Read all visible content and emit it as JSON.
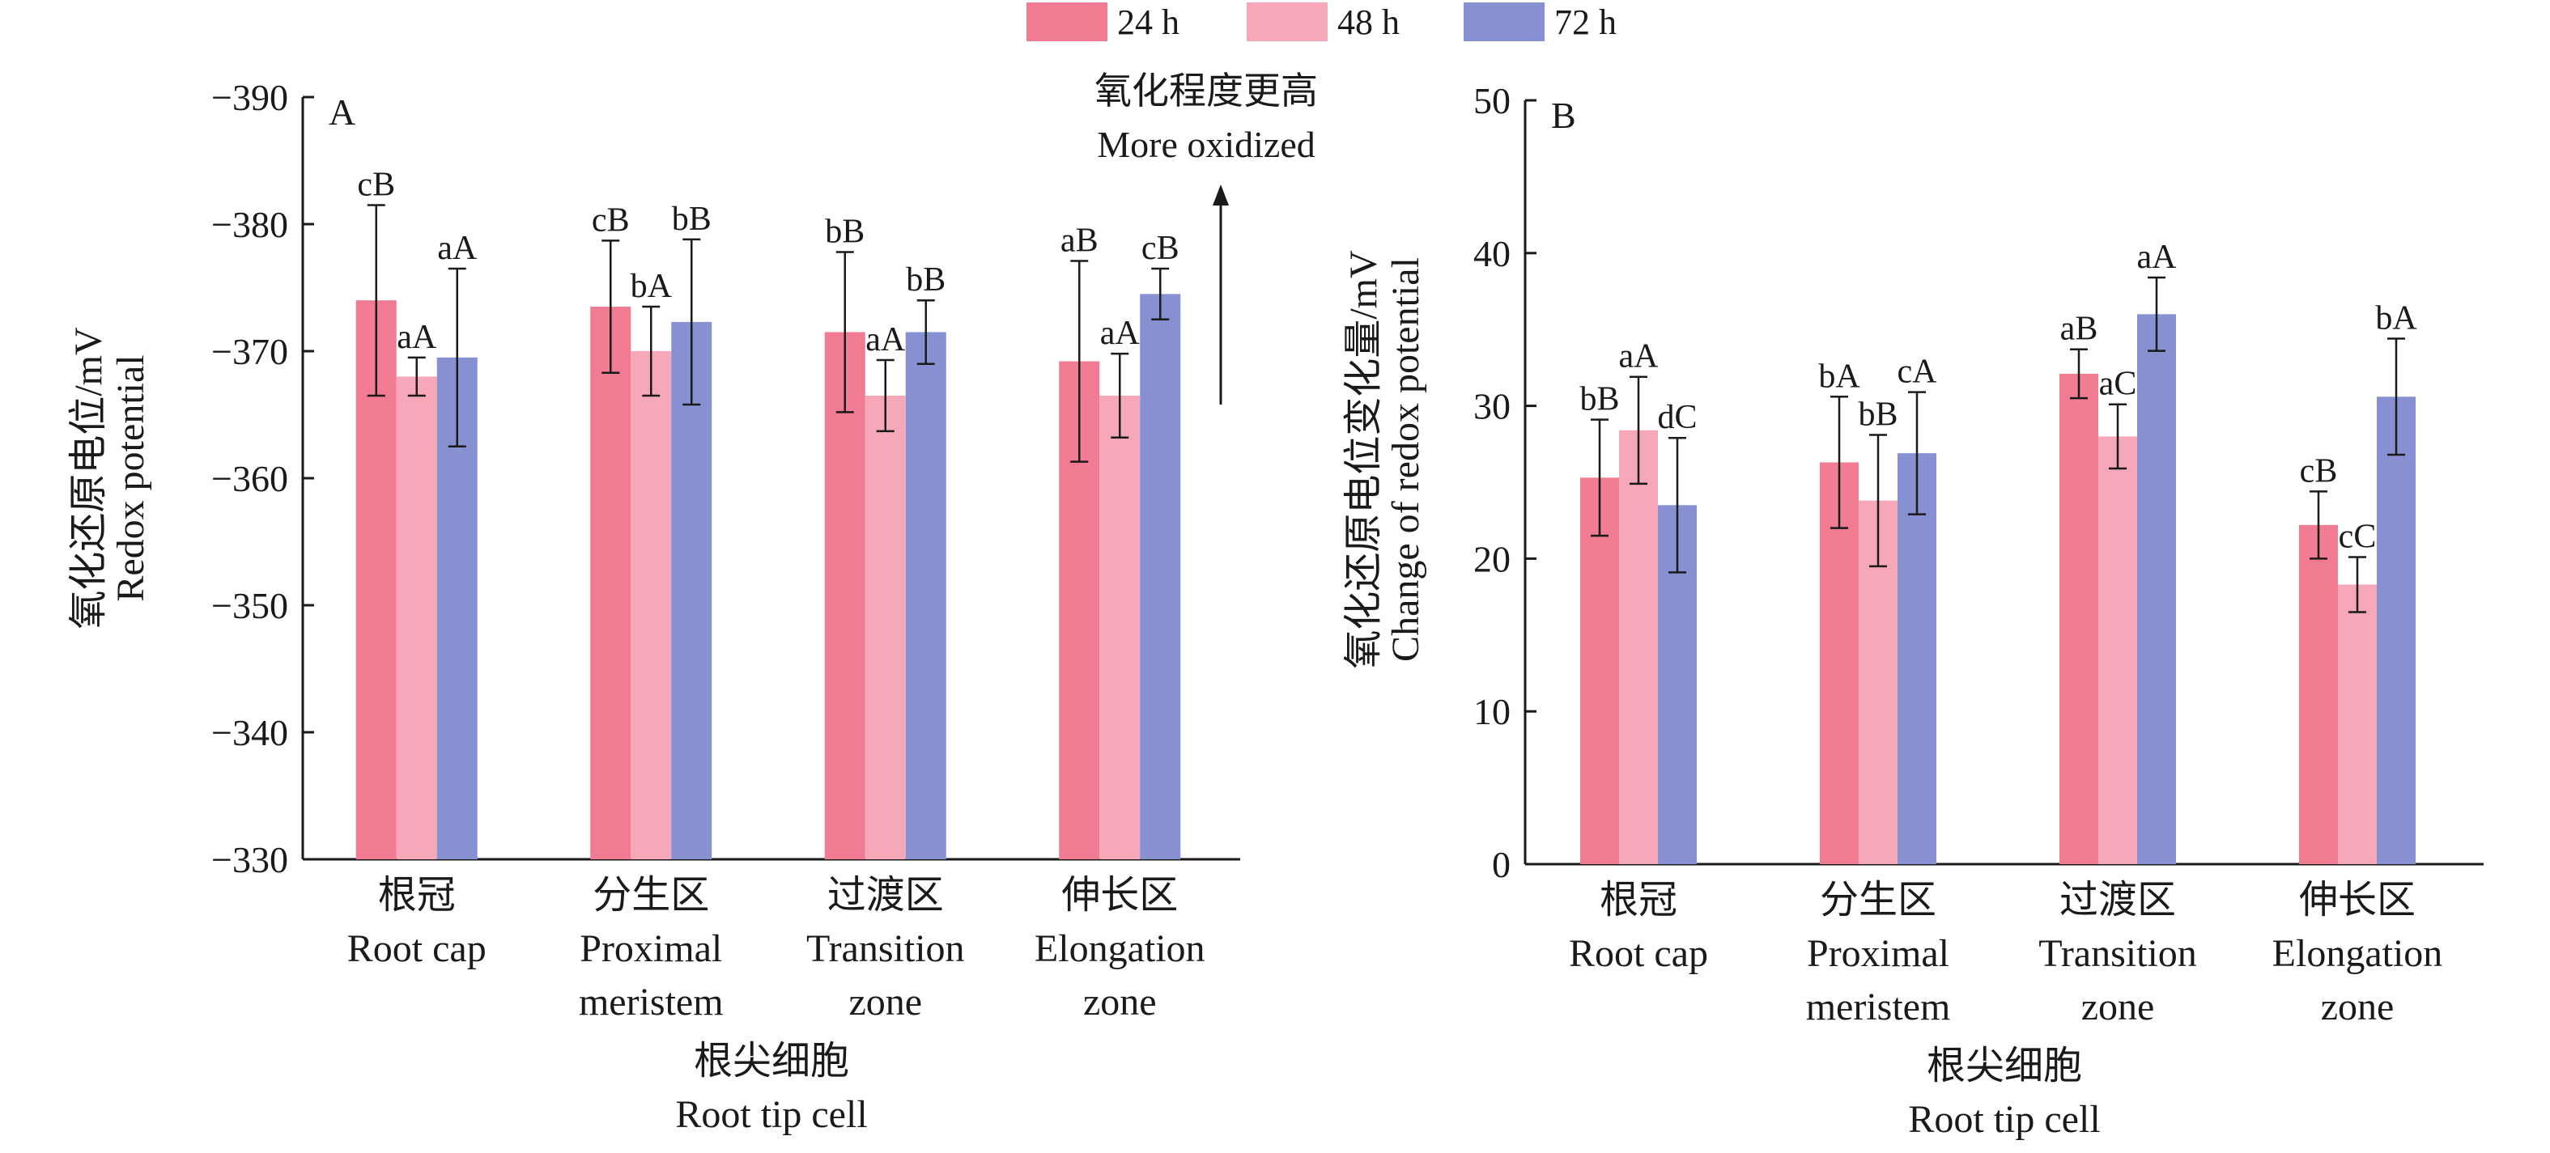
{
  "legend": [
    {
      "label": "24 h",
      "color": "#f07b93"
    },
    {
      "label": "48 h",
      "color": "#f7a8b8"
    },
    {
      "label": "72 h",
      "color": "#8791d2"
    }
  ],
  "chart_data": [
    {
      "type": "bar",
      "panel": "A",
      "ylabel_lines": [
        "氧化还原电位/mV",
        "Redox potential"
      ],
      "xlabel_lines": [
        "根尖细胞",
        "Root tip cell"
      ],
      "yticks": [
        "−390",
        "−380",
        "−370",
        "−360",
        "−350",
        "−340",
        "−330"
      ],
      "ylim": [
        -330,
        -390
      ],
      "categories": [
        [
          "根冠",
          "Root cap"
        ],
        [
          "分生区",
          "Proximal",
          "meristem"
        ],
        [
          "过渡区",
          "Transition",
          "zone"
        ],
        [
          "伸长区",
          "Elongation",
          "zone"
        ]
      ],
      "series": [
        {
          "name": "24 h",
          "values": [
            -374,
            -373.5,
            -371.5,
            -369.2
          ],
          "errors": [
            7.5,
            5.2,
            6.3,
            7.9
          ],
          "labels": [
            "cB",
            "cB",
            "bB",
            "aB"
          ]
        },
        {
          "name": "48 h",
          "values": [
            -368,
            -370,
            -366.5,
            -366.5
          ],
          "errors": [
            1.5,
            3.5,
            2.8,
            3.3
          ],
          "labels": [
            "aA",
            "bA",
            "aA",
            "aA"
          ]
        },
        {
          "name": "72 h",
          "values": [
            -369.5,
            -372.3,
            -371.5,
            -374.5
          ],
          "errors": [
            7,
            6.5,
            2.5,
            2
          ],
          "labels": [
            "aA",
            "bB",
            "bB",
            "cB"
          ]
        }
      ],
      "annotation": [
        "氧化程度更高",
        "More oxidized"
      ]
    },
    {
      "type": "bar",
      "panel": "B",
      "ylabel_lines": [
        "氧化还原电位变化量/mV",
        "Change of redox potential"
      ],
      "xlabel_lines": [
        "根尖细胞",
        "Root tip cell"
      ],
      "yticks": [
        "0",
        "10",
        "20",
        "30",
        "40",
        "50"
      ],
      "ylim": [
        0,
        50
      ],
      "categories": [
        [
          "根冠",
          "Root cap"
        ],
        [
          "分生区",
          "Proximal",
          "meristem"
        ],
        [
          "过渡区",
          "Transition",
          "zone"
        ],
        [
          "伸长区",
          "Elongation",
          "zone"
        ]
      ],
      "series": [
        {
          "name": "24 h",
          "values": [
            25.3,
            26.3,
            32.1,
            22.2
          ],
          "errors": [
            3.8,
            4.3,
            1.6,
            2.2
          ],
          "labels": [
            "bB",
            "bA",
            "aB",
            "cB"
          ]
        },
        {
          "name": "48 h",
          "values": [
            28.4,
            23.8,
            28.0,
            18.3
          ],
          "errors": [
            3.5,
            4.3,
            2.1,
            1.8
          ],
          "labels": [
            "aA",
            "bB",
            "aC",
            "cC"
          ]
        },
        {
          "name": "72 h",
          "values": [
            23.5,
            26.9,
            36.0,
            30.6
          ],
          "errors": [
            4.4,
            4.0,
            2.4,
            3.8
          ],
          "labels": [
            "dC",
            "cA",
            "aA",
            "bA"
          ]
        }
      ]
    }
  ]
}
